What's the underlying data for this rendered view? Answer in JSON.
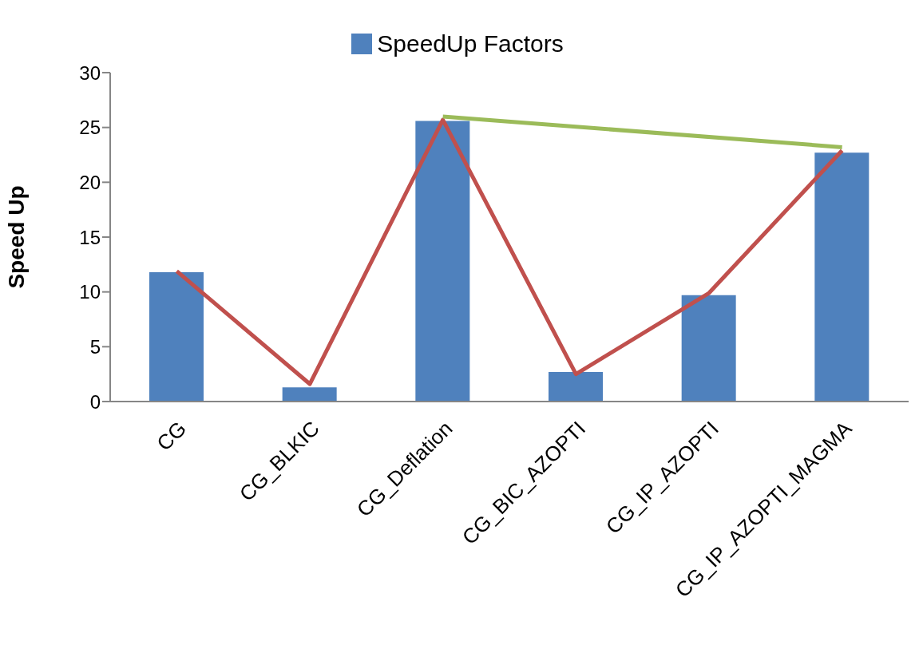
{
  "chart_data": {
    "type": "bar",
    "ylabel": "Speed Up",
    "categories": [
      "CG",
      "CG_BLKIC",
      "CG_Deflation",
      "CG_BIC_AZOPTI",
      "CG_IP_AZOPTI",
      "CG_IP_AZOPTI_MAGMA"
    ],
    "series": [
      {
        "name": "SpeedUp Factors",
        "color": "#4f81bd",
        "values": [
          11.8,
          1.3,
          25.6,
          2.7,
          9.7,
          22.7
        ]
      },
      {
        "type": "line",
        "color": "#c0504d",
        "values": [
          11.9,
          1.6,
          25.7,
          2.5,
          9.9,
          22.9
        ]
      },
      {
        "type": "line",
        "color": "#9bbb59",
        "values": [
          null,
          null,
          26.0,
          null,
          null,
          23.2
        ]
      }
    ],
    "ylim": [
      0,
      30
    ],
    "yticks": [
      0,
      5,
      10,
      15,
      20,
      25,
      30
    ],
    "legend": "top",
    "marker": "none"
  }
}
